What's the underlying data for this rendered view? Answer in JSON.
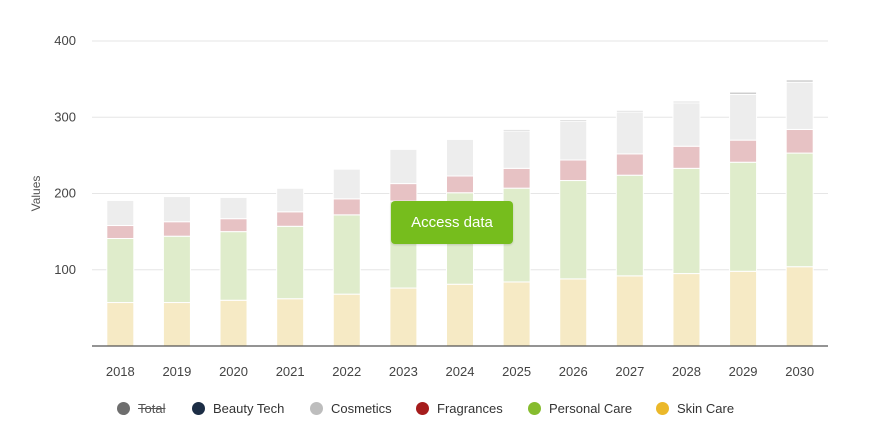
{
  "chart_data": {
    "type": "bar",
    "stacked": true,
    "title": "",
    "xlabel": "",
    "ylabel": "Values",
    "ylim": [
      0,
      400
    ],
    "yticks": [
      100,
      200,
      300,
      400
    ],
    "categories": [
      "2018",
      "2019",
      "2020",
      "2021",
      "2022",
      "2023",
      "2024",
      "2025",
      "2026",
      "2027",
      "2028",
      "2029",
      "2030"
    ],
    "series": [
      {
        "name": "Total",
        "color": "#6e6e6e",
        "visible": false,
        "values": [
          192,
          197,
          196,
          208,
          233,
          259,
          272,
          284,
          297,
          309,
          321,
          333,
          349
        ]
      },
      {
        "name": "Beauty Tech",
        "color": "#1c2d45",
        "visible": true,
        "values": [
          1,
          1,
          1,
          1,
          1,
          1,
          1,
          2,
          2,
          2,
          2,
          3,
          3
        ]
      },
      {
        "name": "Cosmetics",
        "color": "#bdbdbd",
        "visible": true,
        "values": [
          33,
          33,
          28,
          31,
          39,
          45,
          48,
          49,
          51,
          55,
          57,
          60,
          62
        ]
      },
      {
        "name": "Fragrances",
        "color": "#a51c1c",
        "visible": true,
        "values": [
          17,
          19,
          17,
          19,
          21,
          23,
          22,
          26,
          27,
          28,
          29,
          29,
          31
        ]
      },
      {
        "name": "Personal Care",
        "color": "#86bc2e",
        "visible": true,
        "values": [
          84,
          87,
          90,
          95,
          104,
          114,
          120,
          123,
          129,
          132,
          138,
          143,
          149
        ]
      },
      {
        "name": "Skin Care",
        "color": "#ebb82a",
        "visible": true,
        "values": [
          57,
          57,
          60,
          62,
          68,
          76,
          81,
          84,
          88,
          92,
          95,
          98,
          104
        ]
      }
    ]
  },
  "overlay": {
    "access_label": "Access data"
  }
}
